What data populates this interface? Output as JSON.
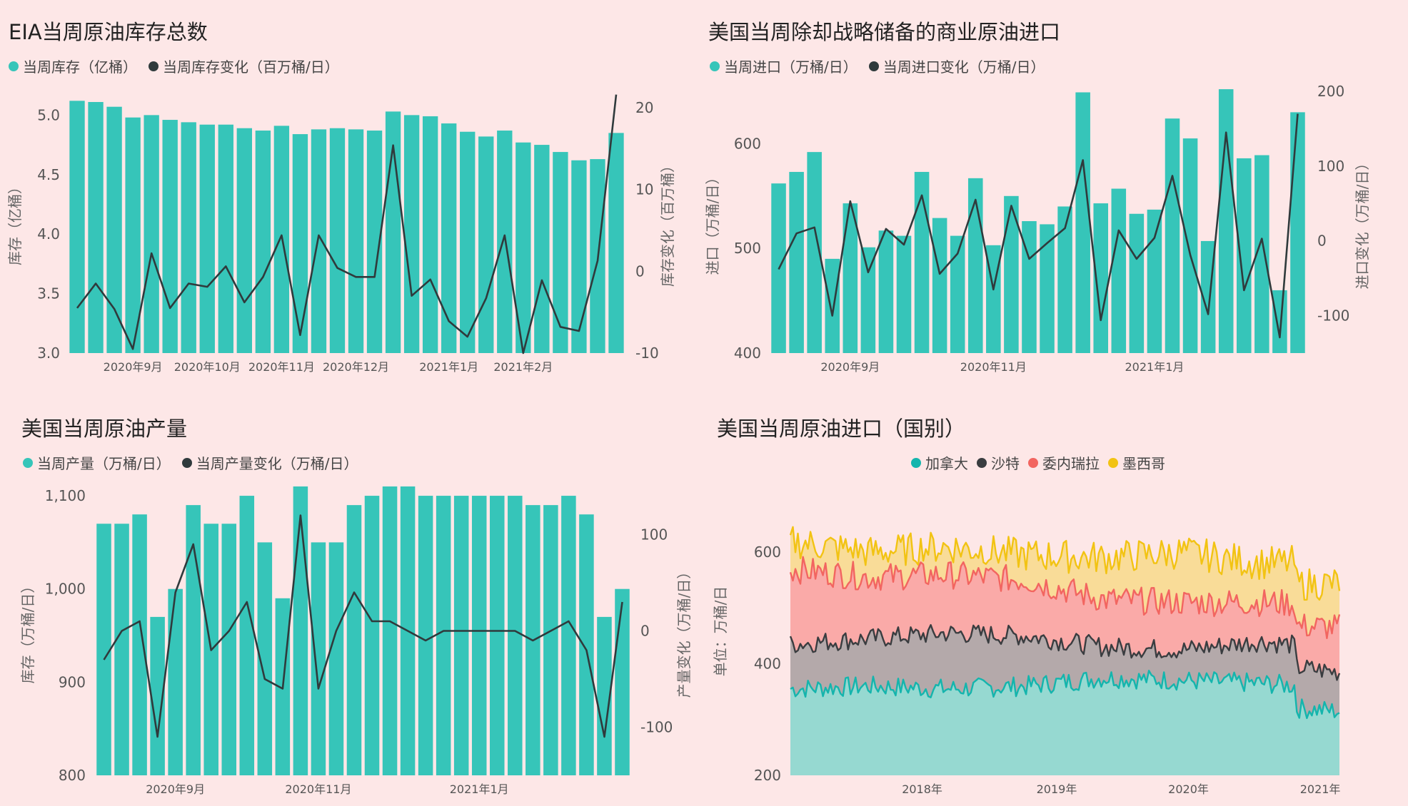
{
  "colors": {
    "bar": "#36c5b9",
    "line": "#2f3a3c",
    "canada": "#14b5ad",
    "saudi": "#3a3d40",
    "venezuela": "#f26560",
    "mexico": "#f2c313",
    "area_canada": "#96d9d1",
    "area_saudi": "#b4a9aa",
    "area_venezuela": "#faaaa8",
    "area_mexico": "#f9dc98"
  },
  "chart_data": [
    {
      "id": "inventory",
      "type": "bar",
      "title": "EIA当周原油库存总数",
      "legend": [
        "当周库存（亿桶）",
        "当周库存变化（百万桶/日）"
      ],
      "ylabel": "库存（亿桶）",
      "y2label": "库存变化（百万桶）",
      "ylim": [
        3.0,
        5.2
      ],
      "y_ticks": [
        "3.0",
        "3.5",
        "4.0",
        "4.5",
        "5.0"
      ],
      "y2lim": [
        -10,
        22
      ],
      "y2_ticks": [
        "-10",
        "0",
        "10",
        "20"
      ],
      "x_ticks": [
        {
          "label": "2020年9月",
          "i": 3
        },
        {
          "label": "2020年10月",
          "i": 7
        },
        {
          "label": "2020年11月",
          "i": 11
        },
        {
          "label": "2020年12月",
          "i": 15
        },
        {
          "label": "2021年1月",
          "i": 20
        },
        {
          "label": "2021年2月",
          "i": 24
        }
      ],
      "series": [
        {
          "name": "当周库存（亿桶）",
          "kind": "bar",
          "values": [
            5.12,
            5.11,
            5.07,
            4.98,
            5.0,
            4.96,
            4.94,
            4.92,
            4.92,
            4.89,
            4.87,
            4.91,
            4.84,
            4.88,
            4.89,
            4.88,
            4.87,
            5.03,
            5.0,
            4.99,
            4.93,
            4.86,
            4.82,
            4.87,
            4.77,
            4.75,
            4.69,
            4.62,
            4.63,
            4.85
          ]
        },
        {
          "name": "当周库存变化（百万桶/日）",
          "kind": "line",
          "values": [
            -4.5,
            -1.5,
            -4.6,
            -9.5,
            2.2,
            -4.5,
            -1.5,
            -1.9,
            0.6,
            -3.8,
            -0.7,
            4.4,
            -7.8,
            4.4,
            0.4,
            -0.7,
            -0.7,
            15.4,
            -3.0,
            -1.0,
            -6.1,
            -8.0,
            -3.3,
            4.4,
            -10.0,
            -1.1,
            -6.8,
            -7.3,
            1.3,
            21.6
          ]
        }
      ]
    },
    {
      "id": "imports",
      "type": "bar",
      "title": "美国当周除却战略储备的商业原油进口",
      "legend": [
        "当周进口（万桶/日）",
        "当周进口变化（万桶/日）"
      ],
      "ylabel": "进口（万桶/日）",
      "y2label": "进口变化（万桶/日）",
      "ylim": [
        400,
        650
      ],
      "y_ticks": [
        "400",
        "500",
        "600"
      ],
      "y2lim": [
        -150,
        200
      ],
      "y2_ticks": [
        "-100",
        "0",
        "100",
        "200"
      ],
      "x_ticks": [
        {
          "label": "2020年9月",
          "i": 4
        },
        {
          "label": "2020年11月",
          "i": 12
        },
        {
          "label": "2021年1月",
          "i": 21
        }
      ],
      "series": [
        {
          "name": "当周进口（万桶/日）",
          "kind": "bar",
          "values": [
            562,
            573,
            592,
            490,
            543,
            501,
            517,
            512,
            573,
            529,
            512,
            567,
            503,
            550,
            526,
            523,
            540,
            649,
            543,
            557,
            533,
            537,
            624,
            605,
            507,
            652,
            586,
            589,
            460,
            630
          ]
        },
        {
          "name": "当周进口变化（万桶/日）",
          "kind": "line",
          "values": [
            -38,
            10,
            18,
            -100,
            53,
            -42,
            16,
            -5,
            61,
            -44,
            -17,
            55,
            -65,
            47,
            -24,
            -3,
            17,
            108,
            -106,
            14,
            -24,
            4,
            87,
            -19,
            -98,
            145,
            -66,
            3,
            -129,
            170
          ]
        }
      ]
    },
    {
      "id": "production",
      "type": "bar",
      "title": "美国当周原油产量",
      "legend": [
        "当周产量（万桶/日）",
        "当周产量变化（万桶/日）"
      ],
      "ylabel": "库存（万桶/日）",
      "y2label": "产量变化（万桶/日）",
      "ylim": [
        800,
        1110
      ],
      "y_ticks": [
        "800",
        "900",
        "1,000",
        "1,100"
      ],
      "y2lim": [
        -150,
        150
      ],
      "y2_ticks": [
        "-100",
        "0",
        "100"
      ],
      "x_ticks": [
        {
          "label": "2020年9月",
          "i": 4
        },
        {
          "label": "2020年11月",
          "i": 12
        },
        {
          "label": "2021年1月",
          "i": 21
        }
      ],
      "series": [
        {
          "name": "当周产量（万桶/日）",
          "kind": "bar",
          "values": [
            1070,
            1070,
            1080,
            970,
            1000,
            1090,
            1070,
            1070,
            1100,
            1050,
            990,
            1110,
            1050,
            1050,
            1090,
            1100,
            1110,
            1110,
            1100,
            1100,
            1100,
            1100,
            1100,
            1100,
            1090,
            1090,
            1100,
            1080,
            970,
            1000
          ]
        },
        {
          "name": "当周产量变化（万桶/日）",
          "kind": "line",
          "values": [
            -30,
            0,
            10,
            -110,
            40,
            90,
            -20,
            0,
            30,
            -50,
            -60,
            120,
            -60,
            0,
            40,
            10,
            10,
            0,
            -10,
            0,
            0,
            0,
            0,
            0,
            -10,
            0,
            10,
            -20,
            -110,
            30
          ]
        }
      ]
    },
    {
      "id": "imports_by_country",
      "type": "area",
      "title": "美国当周原油进口（国别）",
      "legend": [
        "加拿大",
        "沙特",
        "委内瑞拉",
        "墨西哥"
      ],
      "ylabel": "单位：万桶/日",
      "ylim": [
        200,
        650
      ],
      "y_ticks": [
        "200",
        "400",
        "600"
      ],
      "x_ticks": [
        {
          "label": "2018年",
          "i": 0.24
        },
        {
          "label": "2019年",
          "i": 0.485
        },
        {
          "label": "2020年",
          "i": 0.725
        },
        {
          "label": "2021年",
          "i": 0.965
        }
      ],
      "series": [
        {
          "name": "加拿大",
          "base": 330,
          "amp": [
            25,
            30,
            25,
            30,
            45,
            40,
            35,
            25
          ],
          "noise": 18
        },
        {
          "name": "沙特",
          "base": 395,
          "amp": [
            40,
            50,
            60,
            55,
            35,
            30,
            45,
            30
          ],
          "noise": 18
        },
        {
          "name": "委内瑞拉",
          "base": 500,
          "amp": [
            70,
            55,
            60,
            50,
            15,
            10,
            10,
            5
          ],
          "noise": 25
        },
        {
          "name": "墨西哥",
          "base": 560,
          "amp": [
            60,
            40,
            50,
            35,
            30,
            40,
            20,
            25
          ],
          "noise": 30
        }
      ]
    }
  ]
}
